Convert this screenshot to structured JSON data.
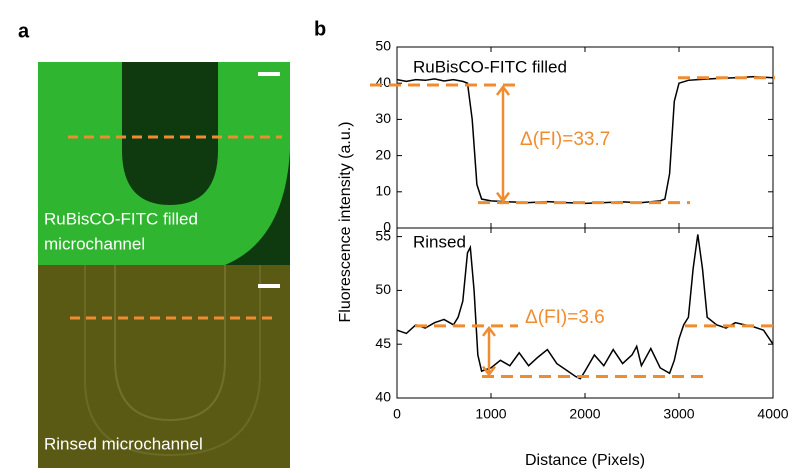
{
  "panel_labels": [
    "a",
    "b"
  ],
  "images": [
    {
      "caption": [
        "RuBisCO-FITC filled",
        "microchannel"
      ]
    },
    {
      "caption": [
        "Rinsed microchannel"
      ]
    }
  ],
  "chart_data": [
    {
      "type": "line",
      "title": "RuBisCO-FITC filled",
      "y_label": "Fluorescence intensity (a.u.)",
      "color": "#000000",
      "x": [
        0,
        100,
        200,
        300,
        400,
        500,
        600,
        700,
        750,
        800,
        850,
        900,
        1000,
        1200,
        1400,
        1600,
        1800,
        2000,
        2200,
        2400,
        2600,
        2800,
        2850,
        2900,
        2950,
        3000,
        3100,
        3200,
        3400,
        3600,
        3800,
        4000
      ],
      "values": [
        41,
        40.5,
        41,
        40.8,
        41.2,
        40.6,
        41,
        40.5,
        40,
        30,
        12,
        8,
        7.5,
        7.2,
        7,
        7.3,
        7,
        6.8,
        7,
        7.2,
        7,
        7.5,
        8,
        15,
        35,
        40,
        40.8,
        41,
        41.3,
        41.5,
        41.8,
        41.5
      ],
      "xlim": [
        0,
        4000
      ],
      "xticks": [
        0,
        1000,
        2000,
        3000,
        4000
      ],
      "ylim": [
        0,
        50
      ],
      "yticks": [
        0,
        10,
        20,
        30,
        40,
        50
      ],
      "annotation": "Δ(FI)=33.7",
      "reference_levels": [
        39.5,
        7,
        41.5
      ],
      "annotation_color": "#f08c30"
    },
    {
      "type": "line",
      "title": "Rinsed",
      "x_label": "Distance (Pixels)",
      "color": "#000000",
      "x": [
        0,
        100,
        200,
        300,
        400,
        500,
        600,
        650,
        700,
        750,
        780,
        820,
        860,
        900,
        1000,
        1100,
        1200,
        1300,
        1400,
        1500,
        1600,
        1700,
        1800,
        1900,
        1950,
        2000,
        2100,
        2200,
        2300,
        2400,
        2500,
        2550,
        2600,
        2700,
        2800,
        2900,
        2950,
        3000,
        3050,
        3100,
        3150,
        3200,
        3250,
        3300,
        3400,
        3500,
        3600,
        3700,
        3800,
        3900,
        4000
      ],
      "values": [
        46.3,
        46,
        46.8,
        46.5,
        47,
        47.3,
        46.8,
        47.5,
        49,
        53.5,
        54,
        50,
        44,
        42.5,
        42.8,
        43.5,
        43,
        44.2,
        43,
        43.8,
        44.5,
        43.2,
        42.6,
        42,
        41.8,
        42.5,
        44,
        43,
        44.5,
        43.2,
        44,
        44.8,
        43,
        44.6,
        42.8,
        42.3,
        43.5,
        45.5,
        46.8,
        47.5,
        52,
        55.2,
        52,
        47.5,
        46.8,
        46.5,
        47,
        46.8,
        46.6,
        46.3,
        45
      ],
      "xlim": [
        0,
        4000
      ],
      "xticks": [
        0,
        1000,
        2000,
        3000,
        4000
      ],
      "ylim": [
        40,
        55.8
      ],
      "yticks": [
        40,
        45,
        50,
        55
      ],
      "annotation": "Δ(FI)=3.6",
      "reference_levels": [
        46.7,
        42,
        46.7
      ],
      "annotation_color": "#f08c30"
    }
  ]
}
